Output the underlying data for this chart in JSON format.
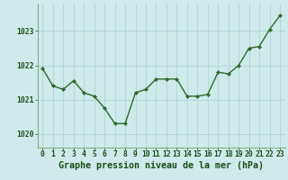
{
  "x": [
    0,
    1,
    2,
    3,
    4,
    5,
    6,
    7,
    8,
    9,
    10,
    11,
    12,
    13,
    14,
    15,
    16,
    17,
    18,
    19,
    20,
    21,
    22,
    23
  ],
  "y": [
    1021.9,
    1021.4,
    1021.3,
    1021.55,
    1021.2,
    1021.1,
    1020.75,
    1020.3,
    1020.3,
    1021.2,
    1021.3,
    1021.6,
    1021.6,
    1021.6,
    1021.1,
    1021.1,
    1021.15,
    1021.8,
    1021.75,
    1022.0,
    1022.5,
    1022.55,
    1023.05,
    1023.45
  ],
  "line_color": "#2d6a2d",
  "marker": "D",
  "marker_size": 2.2,
  "line_width": 1.0,
  "bg_color": "#ceeaea",
  "grid_color": "#aed4d4",
  "xlabel": "Graphe pression niveau de la mer (hPa)",
  "ylabel": "",
  "ylim": [
    1019.6,
    1023.8
  ],
  "yticks": [
    1020,
    1021,
    1022,
    1023
  ],
  "xticks": [
    0,
    1,
    2,
    3,
    4,
    5,
    6,
    7,
    8,
    9,
    10,
    11,
    12,
    13,
    14,
    15,
    16,
    17,
    18,
    19,
    20,
    21,
    22,
    23
  ],
  "tick_label_fontsize": 5.8,
  "title_fontsize": 7.2,
  "label_color": "#1a4d1a",
  "tick_color": "#1a4d1a",
  "spine_color": "#7aaa7a"
}
